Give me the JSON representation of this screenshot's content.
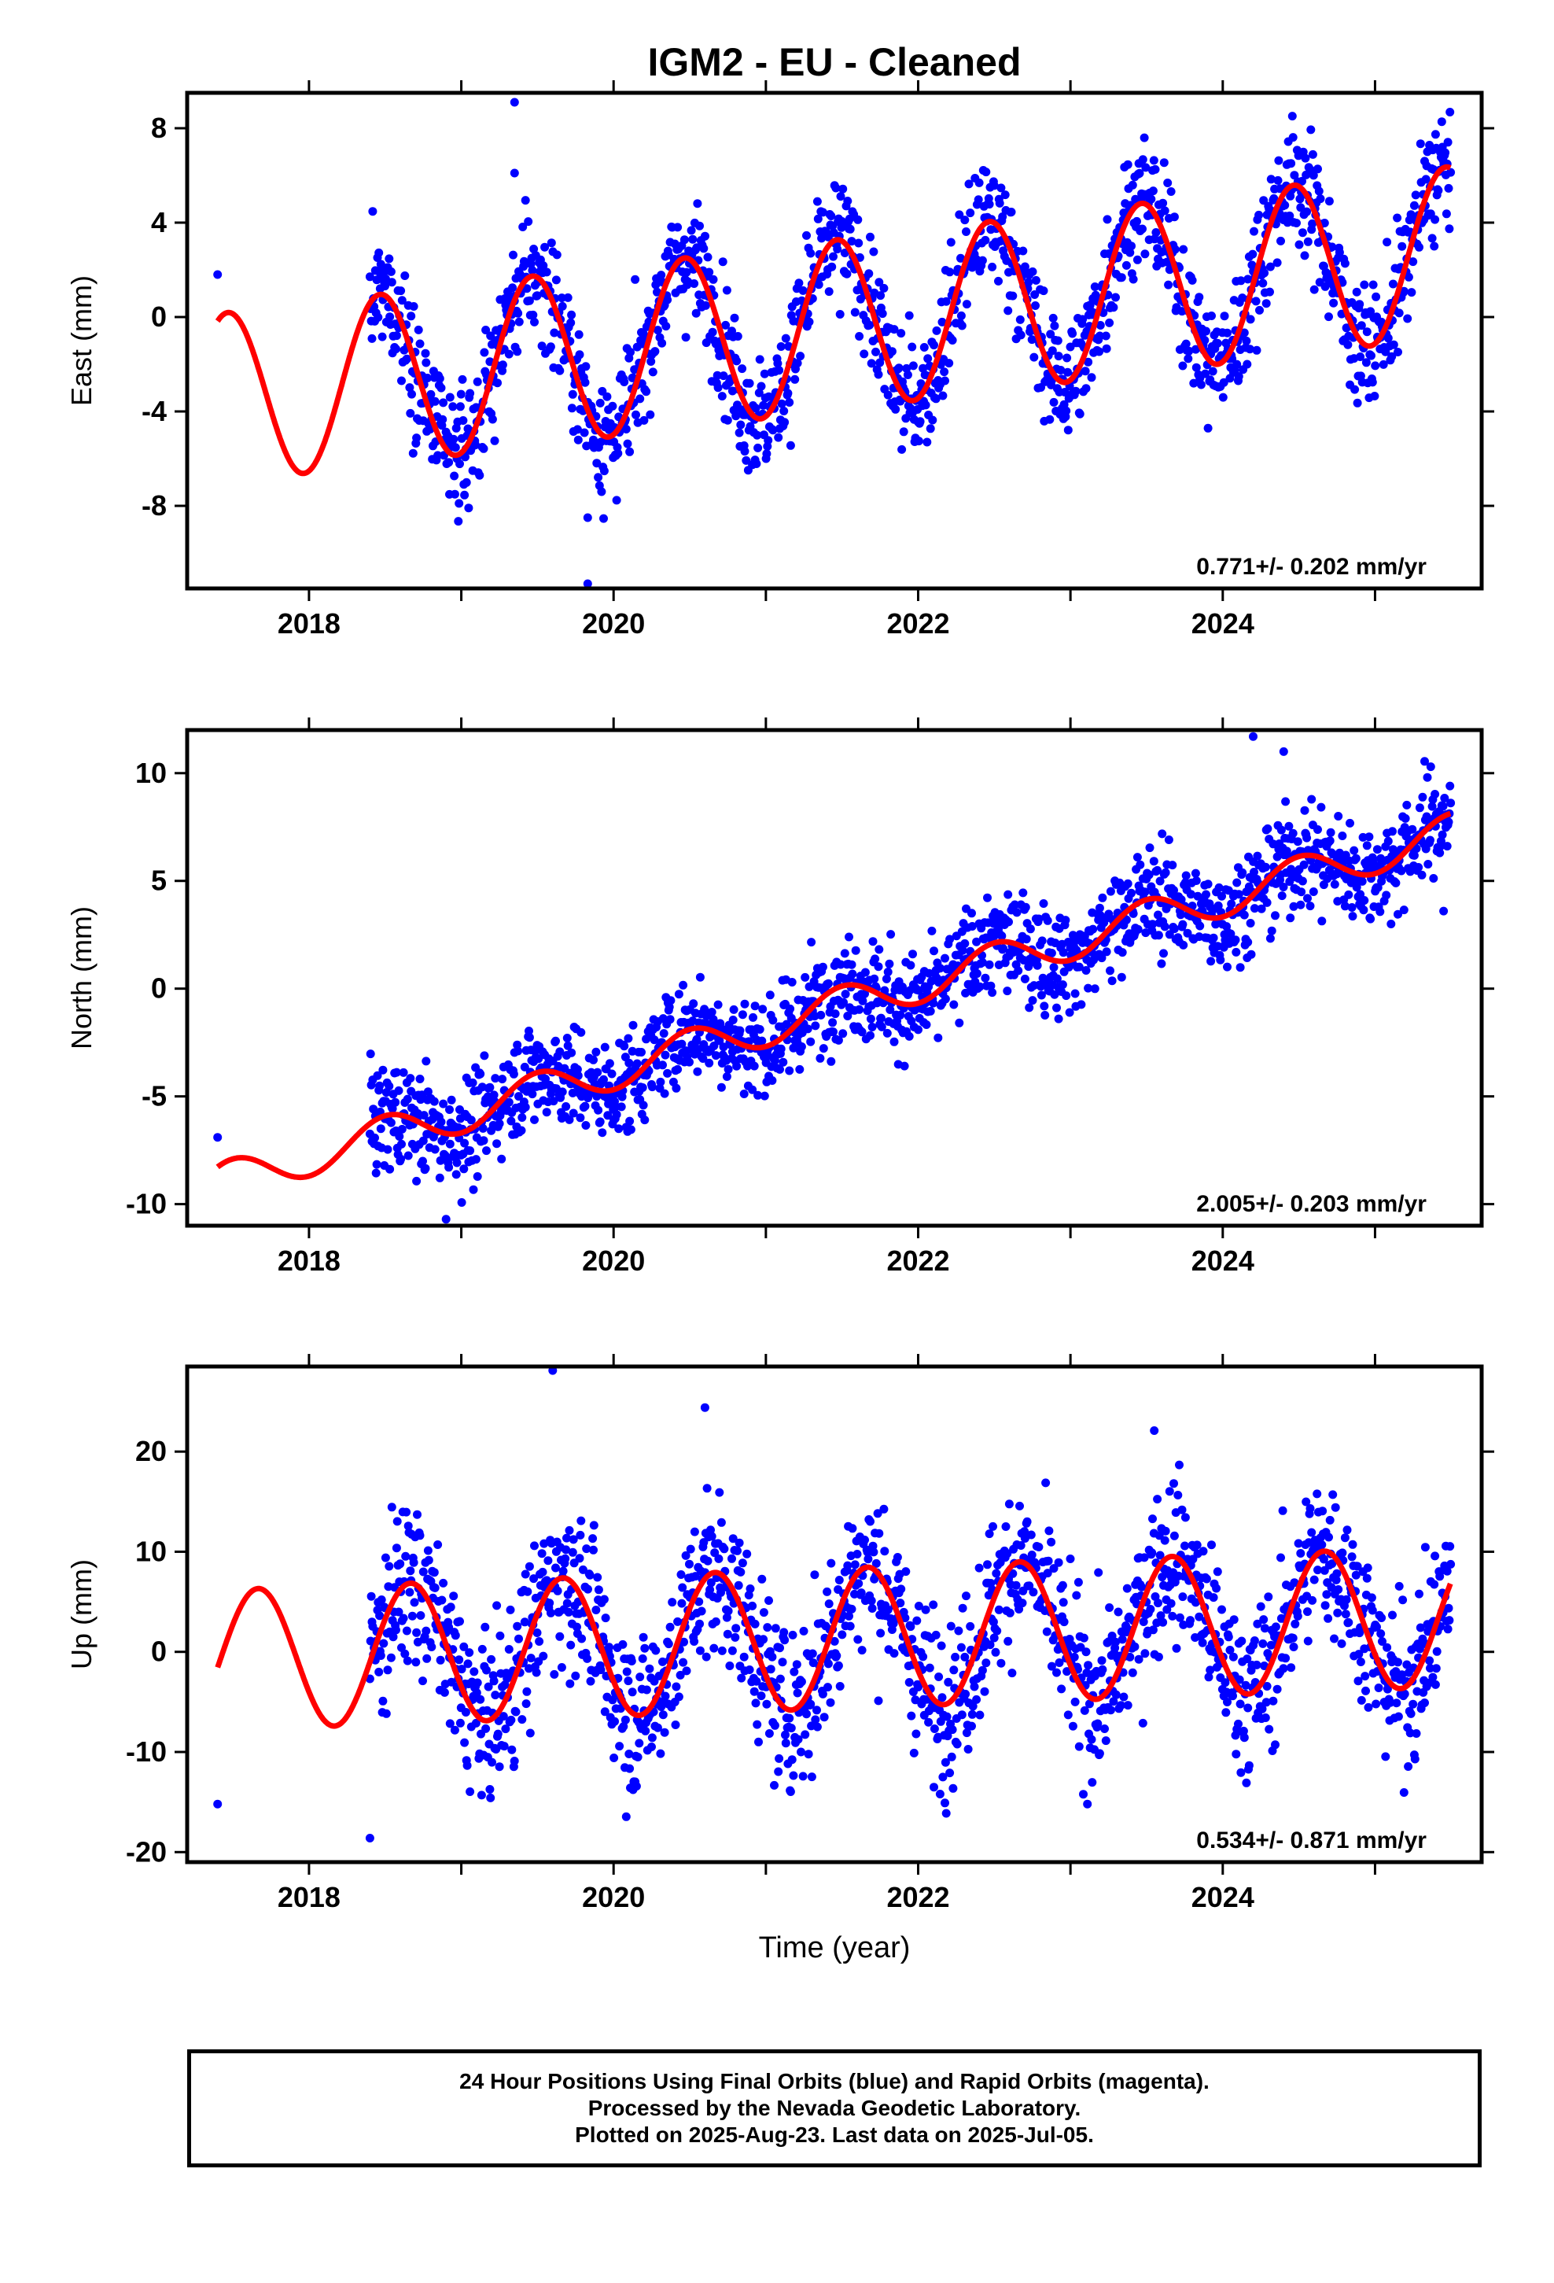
{
  "chart_data": {
    "type": "scatter",
    "title": "IGM2  - EU - Cleaned",
    "xlabel": "Time (year)",
    "x_range": [
      2017.2,
      2025.7
    ],
    "x_ticks": [
      "2018",
      "2020",
      "2022",
      "2024"
    ],
    "series_styles": {
      "observations": "#0000ff",
      "model": "#ff0000"
    },
    "panels": [
      {
        "id": "east",
        "ylabel": "East (mm)",
        "ylim": [
          -11.5,
          9.5
        ],
        "yticks": [
          -8,
          -4,
          0,
          4,
          8
        ],
        "rate_label": "0.771+/- 0.202 mm/yr",
        "rate": 0.771,
        "annual_amplitude": 3.6,
        "annual_peak_month": 5.6,
        "trend_at_2018": -3.0,
        "outliers": [
          [
            2017.4,
            1.8
          ],
          [
            2019.35,
            9.1
          ],
          [
            2019.35,
            6.1
          ],
          [
            2019.83,
            -11.3
          ],
          [
            2019.83,
            -8.5
          ]
        ],
        "noise_sd": 1.3
      },
      {
        "id": "north",
        "ylabel": "North (mm)",
        "ylim": [
          -11.0,
          12.0
        ],
        "yticks": [
          -10,
          -5,
          0,
          5,
          10
        ],
        "rate_label": "2.005+/- 0.203 mm/yr",
        "rate": 2.005,
        "annual_amplitude": 0.9,
        "annual_peak_month": 6.0,
        "trend_at_2018": -7.8,
        "outliers": [
          [
            2017.4,
            -6.9
          ],
          [
            2024.2,
            11.7
          ],
          [
            2024.4,
            11.0
          ],
          [
            2025.45,
            3.6
          ],
          [
            2018.9,
            -10.7
          ]
        ],
        "noise_sd": 1.2
      },
      {
        "id": "up",
        "ylabel": "Up (mm)",
        "ylim": [
          -21.0,
          28.5
        ],
        "yticks": [
          -20,
          -10,
          0,
          10,
          20
        ],
        "rate_label": "0.534+/- 0.871 mm/yr",
        "rate": 0.534,
        "annual_amplitude": 7.0,
        "annual_peak_month": 8.0,
        "trend_at_2018": -0.5,
        "outliers": [
          [
            2017.4,
            -15.2
          ],
          [
            2019.6,
            28.1
          ],
          [
            2020.6,
            24.4
          ],
          [
            2023.55,
            22.1
          ],
          [
            2018.4,
            -18.6
          ]
        ],
        "noise_sd": 4.0
      }
    ]
  },
  "footer": {
    "line1": "24 Hour Positions Using Final Orbits (blue) and Rapid Orbits (magenta).",
    "line2": "Processed by the Nevada Geodetic Laboratory.",
    "line3": "Plotted on 2025-Aug-23. Last data on 2025-Jul-05."
  }
}
